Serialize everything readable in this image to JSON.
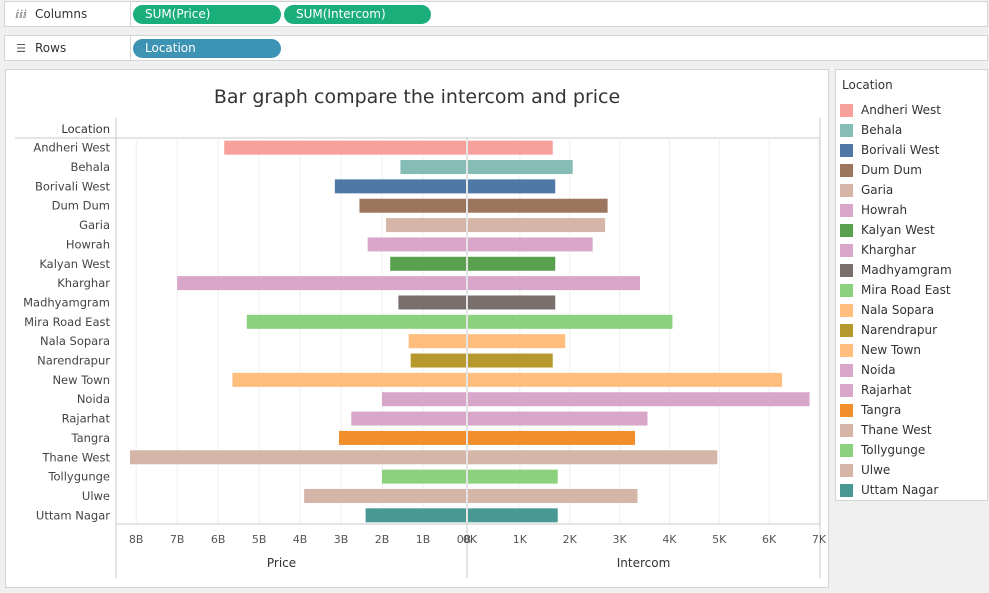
{
  "shelves": {
    "columns": {
      "label": "Columns",
      "pills": [
        "SUM(Price)",
        "SUM(Intercom)"
      ]
    },
    "rows": {
      "label": "Rows",
      "pills": [
        "Location"
      ]
    }
  },
  "legend": {
    "title": "Location"
  },
  "chart_data": {
    "type": "bar",
    "orientation": "horizontal",
    "title": "Bar graph compare  the intercom and price",
    "row_header": "Location",
    "categories": [
      "Andheri West",
      "Behala",
      "Borivali West",
      "Dum Dum",
      "Garia",
      "Howrah",
      "Kalyan West",
      "Kharghar",
      "Madhyamgram",
      "Mira Road East",
      "Nala Sopara",
      "Narendrapur",
      "New Town",
      "Noida",
      "Rajarhat",
      "Tangra",
      "Thane West",
      "Tollygunge",
      "Ulwe",
      "Uttam Nagar"
    ],
    "colors": [
      "#f8a09c",
      "#86bcb6",
      "#4e79a7",
      "#9c755f",
      "#d4b5a7",
      "#d7a6c9",
      "#59a14f",
      "#d7a6c9",
      "#79706e",
      "#8cd17d",
      "#ffbe7d",
      "#b6992d",
      "#ffbe7d",
      "#d7a6c9",
      "#d7a6c9",
      "#f28e2b",
      "#d4b5a7",
      "#8cd17d",
      "#d4b5a7",
      "#499894"
    ],
    "series": [
      {
        "name": "Price",
        "axis": "left",
        "values": [
          5.9,
          1.6,
          3.2,
          2.6,
          1.95,
          2.4,
          1.85,
          7.05,
          1.65,
          5.35,
          1.4,
          1.35,
          5.7,
          2.05,
          2.8,
          3.1,
          8.2,
          2.05,
          3.95,
          2.45
        ],
        "ticks": [
          "8B",
          "7B",
          "6B",
          "5B",
          "4B",
          "3B",
          "2B",
          "1B",
          "0B"
        ],
        "range": [
          0,
          8.5
        ],
        "reversed": true,
        "unit": "B"
      },
      {
        "name": "Intercom",
        "axis": "right",
        "values": [
          1.7,
          2.1,
          1.75,
          2.8,
          2.75,
          2.5,
          1.75,
          3.45,
          1.75,
          4.1,
          1.95,
          1.7,
          6.3,
          6.85,
          3.6,
          3.35,
          5.0,
          1.8,
          3.4,
          1.8
        ],
        "ticks": [
          "0K",
          "1K",
          "2K",
          "3K",
          "4K",
          "5K",
          "6K",
          "7K"
        ],
        "range": [
          0,
          7.05
        ],
        "reversed": false,
        "unit": "K"
      }
    ]
  }
}
